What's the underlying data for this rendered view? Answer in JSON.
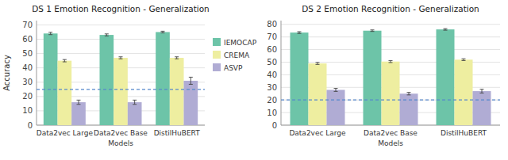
{
  "chart_data": [
    {
      "type": "bar",
      "title": "DS 1 Emotion Recognition - Generalization",
      "categories": [
        "Data2vec Large",
        "Data2vec Base",
        "DistilHuBERT"
      ],
      "xlabel": "Models",
      "ylabel": "Accuracy",
      "series": [
        {
          "name": "IEMOCAP",
          "color": "#6dc4a8",
          "values": [
            64.0,
            63.0,
            65.0
          ],
          "errors": [
            0.8,
            0.7,
            0.6
          ]
        },
        {
          "name": "CREMA",
          "color": "#eeeea0",
          "values": [
            45.0,
            47.0,
            47.0
          ],
          "errors": [
            0.8,
            0.7,
            0.7
          ]
        },
        {
          "name": "ASVP",
          "color": "#b0acd4",
          "values": [
            16.0,
            16.0,
            31.0
          ],
          "errors": [
            1.5,
            1.5,
            2.5
          ]
        }
      ],
      "reference_line": {
        "value": 25.0,
        "color": "#5588cc",
        "line_style": "dashed"
      },
      "ylim": [
        0,
        73
      ],
      "yticks": [
        0,
        10,
        20,
        30,
        40,
        50,
        60,
        70
      ],
      "grid": true,
      "legend": "right"
    },
    {
      "type": "bar",
      "title": "DS 2 Emotion Recognition - Generalization",
      "categories": [
        "Data2vec Large",
        "Data2vec Base",
        "DistilHuBERT"
      ],
      "xlabel": "Models",
      "series": [
        {
          "name": "IEMOCAP",
          "color": "#6dc4a8",
          "values": [
            73.5,
            75.0,
            76.0
          ],
          "errors": [
            0.7,
            0.6,
            0.6
          ]
        },
        {
          "name": "CREMA",
          "color": "#eeeea0",
          "values": [
            49.0,
            50.5,
            52.0
          ],
          "errors": [
            0.8,
            0.8,
            0.7
          ]
        },
        {
          "name": "ASVP",
          "color": "#b0acd4",
          "values": [
            28.0,
            25.0,
            27.0
          ],
          "errors": [
            1.2,
            1.0,
            1.5
          ]
        }
      ],
      "reference_line": {
        "value": 20.0,
        "color": "#5588cc",
        "line_style": "dashed"
      },
      "ylim": [
        0,
        83
      ],
      "yticks": [
        0,
        10,
        20,
        30,
        40,
        50,
        60,
        70,
        80
      ],
      "grid": true
    }
  ]
}
